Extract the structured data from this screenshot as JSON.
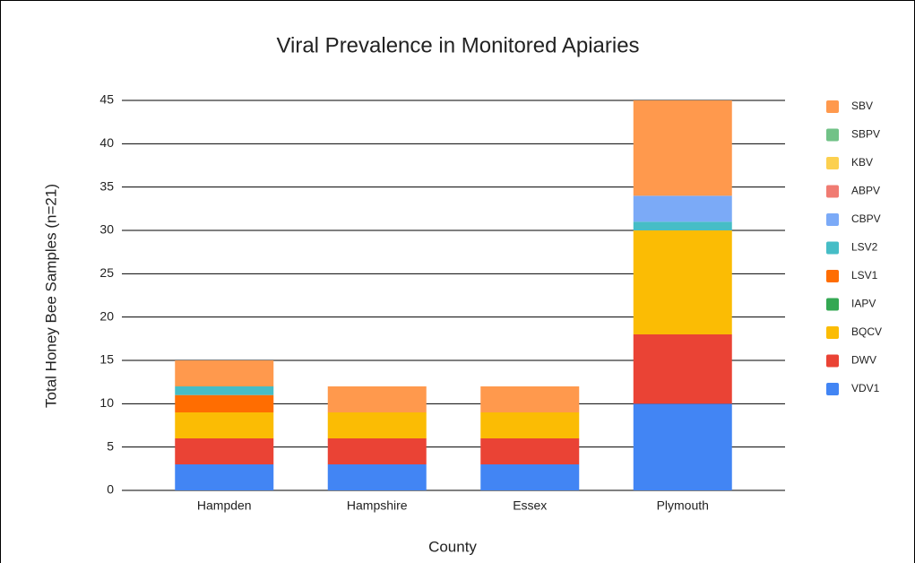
{
  "chart_data": {
    "type": "stacked_bar",
    "title": "Viral Prevalence in Monitored Apiaries",
    "x_label": "County",
    "y_label": "Total Honey Bee Samples (n=21)",
    "categories": [
      "Hampden",
      "Hampshire",
      "Essex",
      "Plymouth"
    ],
    "series": [
      {
        "name": "VDV1",
        "color": "#4285f4",
        "values": [
          3,
          3,
          3,
          10
        ]
      },
      {
        "name": "DWV",
        "color": "#ea4335",
        "values": [
          3,
          3,
          3,
          8
        ]
      },
      {
        "name": "BQCV",
        "color": "#fbbc04",
        "values": [
          3,
          3,
          3,
          12
        ]
      },
      {
        "name": "IAPV",
        "color": "#34a853",
        "values": [
          0,
          0,
          0,
          0
        ]
      },
      {
        "name": "LSV1",
        "color": "#ff6d01",
        "values": [
          2,
          0,
          0,
          0
        ]
      },
      {
        "name": "LSV2",
        "color": "#46bdc6",
        "values": [
          1,
          0,
          0,
          1
        ]
      },
      {
        "name": "CBPV",
        "color": "#7baaf7",
        "values": [
          0,
          0,
          0,
          3
        ]
      },
      {
        "name": "ABPV",
        "color": "#f07b72",
        "values": [
          0,
          0,
          0,
          0
        ]
      },
      {
        "name": "KBV",
        "color": "#fcd04f",
        "values": [
          0,
          0,
          0,
          0
        ]
      },
      {
        "name": "SBPV",
        "color": "#71c287",
        "values": [
          0,
          0,
          0,
          0
        ]
      },
      {
        "name": "SBV",
        "color": "#ff994d",
        "values": [
          3,
          3,
          3,
          11
        ]
      }
    ],
    "ylim": [
      0,
      45
    ],
    "yticks": [
      0,
      5,
      10,
      15,
      20,
      25,
      30,
      35,
      40,
      45
    ],
    "grid": true,
    "legend": "right"
  }
}
